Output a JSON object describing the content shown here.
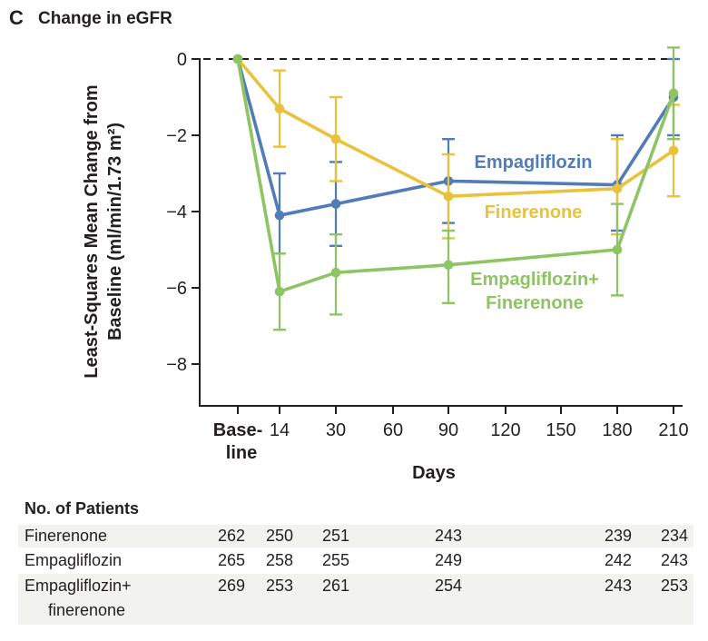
{
  "panel": {
    "letter": "C",
    "title": "Change in eGFR"
  },
  "colors": {
    "ink": "#231f20",
    "empagliflozin_blue": "#527cb8",
    "finerenone_yellow": "#e9c23c",
    "combination_green": "#8ec464",
    "table_stripe": "#f2f2ef"
  },
  "y_axis": {
    "label_line1": "Least-Squares Mean Change from",
    "label_line2": "Baseline (ml/min/1.73 m²)",
    "tick_values": [
      0,
      -2,
      -4,
      -6,
      -8
    ],
    "tick_labels": [
      "0",
      "−2",
      "−4",
      "−6",
      "−8"
    ]
  },
  "x_axis": {
    "label": "Days",
    "tick_days": [
      0,
      14,
      30,
      60,
      90,
      120,
      150,
      180,
      210
    ],
    "tick_labels": [
      "Base-",
      "14",
      "30",
      "60",
      "90",
      "120",
      "150",
      "180",
      "210"
    ],
    "baseline_label_line2": "line"
  },
  "chart_data": {
    "type": "line",
    "title": "Change in eGFR",
    "ylabel": "Least-Squares Mean Change from Baseline (ml/min/1.73 m²)",
    "xlabel": "Days",
    "ylim": [
      0,
      -9.1
    ],
    "zero_reference": "dashed horizontal line at 0",
    "grid": false,
    "legend_position": "inline labels beside curves",
    "x_days": [
      0,
      14,
      30,
      90,
      180,
      210
    ],
    "series": [
      {
        "name": "Empagliflozin",
        "color": "#527cb8",
        "values": [
          0,
          -4.1,
          -3.8,
          -3.2,
          -3.3,
          -1.0
        ],
        "upper": [
          null,
          -3.0,
          -2.7,
          -2.1,
          -2.0,
          0.0
        ],
        "lower": [
          null,
          -5.1,
          -4.9,
          -4.3,
          -4.5,
          -2.0
        ]
      },
      {
        "name": "Finerenone",
        "color": "#e9c23c",
        "values": [
          0,
          -1.3,
          -2.1,
          -3.6,
          -3.4,
          -2.4
        ],
        "upper": [
          null,
          -0.3,
          -1.0,
          -2.5,
          -2.1,
          -1.2
        ],
        "lower": [
          null,
          -2.3,
          -3.2,
          -4.7,
          -4.6,
          -3.6
        ]
      },
      {
        "name": "Empagliflozin+Finerenone",
        "color": "#8ec464",
        "values": [
          0,
          -6.1,
          -5.6,
          -5.4,
          -5.0,
          -0.9
        ],
        "upper": [
          null,
          -5.1,
          -4.6,
          -4.5,
          -3.8,
          0.3
        ],
        "lower": [
          null,
          -7.1,
          -6.7,
          -6.4,
          -6.2,
          -2.1
        ]
      }
    ]
  },
  "legend": {
    "empagliflozin": "Empagliflozin",
    "finerenone": "Finerenone",
    "combination_line1": "Empagliflozin+",
    "combination_line2": "Finerenone"
  },
  "patients_table": {
    "header": "No. of Patients",
    "columns_days": [
      0,
      14,
      30,
      90,
      180,
      210
    ],
    "rows": [
      {
        "label": "Finerenone",
        "label_line2": "",
        "values": [
          "262",
          "250",
          "251",
          "243",
          "239",
          "234"
        ]
      },
      {
        "label": "Empagliflozin",
        "label_line2": "",
        "values": [
          "265",
          "258",
          "255",
          "249",
          "242",
          "243"
        ]
      },
      {
        "label": "Empagliflozin+",
        "label_line2": "finerenone",
        "values": [
          "269",
          "253",
          "261",
          "254",
          "243",
          "253"
        ]
      }
    ]
  }
}
